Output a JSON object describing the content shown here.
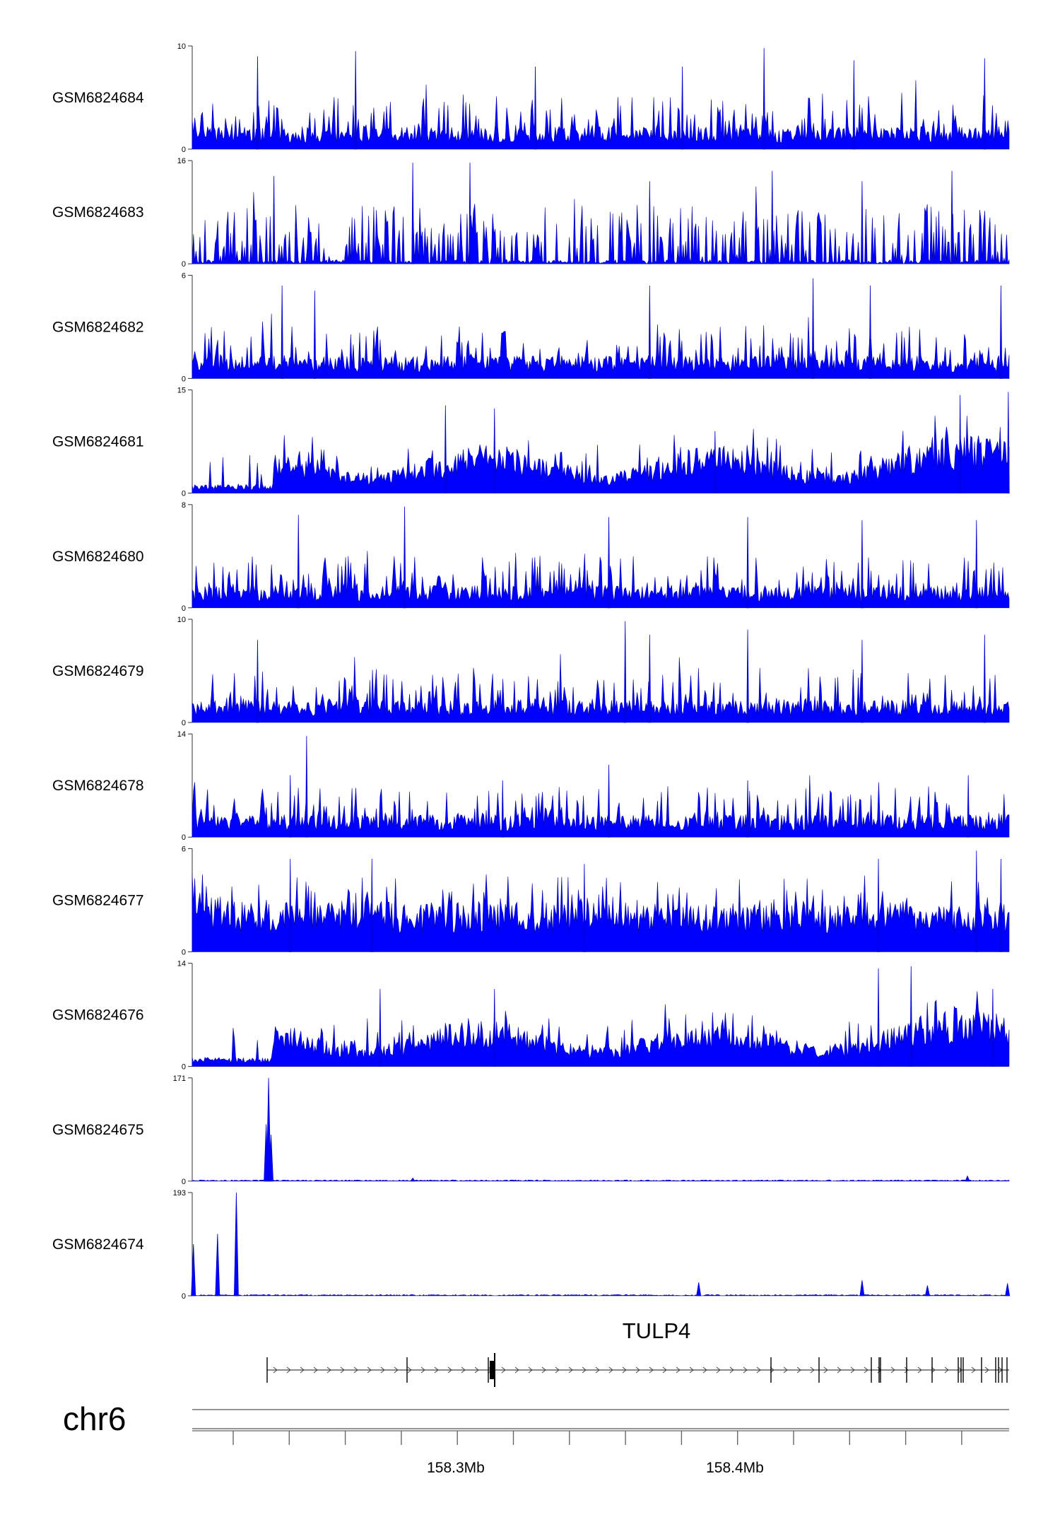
{
  "chart_data": {
    "type": "area",
    "chromosome": "chr6",
    "track_color": "#0000ff",
    "x_ticks": [
      "158.3Mb",
      "158.4Mb"
    ],
    "gene": {
      "name": "TULP4",
      "strand": "+"
    },
    "tracks": [
      {
        "name": "GSM6824684",
        "ymax": "10",
        "ymin": "0",
        "pattern": "noise",
        "peaks": [
          [
            0.08,
            0.9
          ],
          [
            0.2,
            0.95
          ],
          [
            0.42,
            0.8
          ],
          [
            0.6,
            0.8
          ],
          [
            0.7,
            0.98
          ],
          [
            0.81,
            0.86
          ],
          [
            0.97,
            0.88
          ]
        ]
      },
      {
        "name": "GSM6824683",
        "ymax": "16",
        "ymin": "0",
        "pattern": "sparse",
        "peaks": [
          [
            0.1,
            0.85
          ],
          [
            0.27,
            0.98
          ],
          [
            0.34,
            0.98
          ],
          [
            0.56,
            0.8
          ],
          [
            0.71,
            0.9
          ],
          [
            0.82,
            0.8
          ],
          [
            0.93,
            0.9
          ]
        ]
      },
      {
        "name": "GSM6824682",
        "ymax": "6",
        "ymin": "0",
        "pattern": "noise",
        "peaks": [
          [
            0.11,
            0.9
          ],
          [
            0.15,
            0.85
          ],
          [
            0.56,
            0.9
          ],
          [
            0.76,
            0.97
          ],
          [
            0.83,
            0.9
          ],
          [
            0.99,
            0.9
          ]
        ]
      },
      {
        "name": "GSM6824681",
        "ymax": "15",
        "ymin": "0",
        "pattern": "broad",
        "peaks": [
          [
            0.31,
            0.85
          ],
          [
            0.37,
            0.82
          ],
          [
            0.64,
            0.6
          ],
          [
            0.94,
            0.95
          ],
          [
            0.999,
            0.98
          ]
        ]
      },
      {
        "name": "GSM6824680",
        "ymax": "8",
        "ymin": "0",
        "pattern": "noise",
        "peaks": [
          [
            0.13,
            0.9
          ],
          [
            0.26,
            0.98
          ],
          [
            0.51,
            0.88
          ],
          [
            0.68,
            0.88
          ],
          [
            0.82,
            0.85
          ],
          [
            0.96,
            0.85
          ]
        ]
      },
      {
        "name": "GSM6824679",
        "ymax": "10",
        "ymin": "0",
        "pattern": "noise",
        "peaks": [
          [
            0.08,
            0.8
          ],
          [
            0.53,
            0.98
          ],
          [
            0.56,
            0.85
          ],
          [
            0.68,
            0.9
          ],
          [
            0.82,
            0.8
          ],
          [
            0.97,
            0.85
          ]
        ]
      },
      {
        "name": "GSM6824678",
        "ymax": "14",
        "ymin": "0",
        "pattern": "noise",
        "peaks": [
          [
            0.14,
            0.98
          ],
          [
            0.12,
            0.6
          ],
          [
            0.38,
            0.55
          ],
          [
            0.51,
            0.7
          ],
          [
            0.68,
            0.55
          ],
          [
            0.95,
            0.6
          ]
        ]
      },
      {
        "name": "GSM6824677",
        "ymax": "6",
        "ymin": "0",
        "pattern": "dense",
        "peaks": [
          [
            0.12,
            0.9
          ],
          [
            0.22,
            0.9
          ],
          [
            0.48,
            0.85
          ],
          [
            0.84,
            0.9
          ],
          [
            0.96,
            0.98
          ],
          [
            0.99,
            0.9
          ]
        ]
      },
      {
        "name": "GSM6824676",
        "ymax": "14",
        "ymin": "0",
        "pattern": "broad",
        "peaks": [
          [
            0.23,
            0.75
          ],
          [
            0.37,
            0.75
          ],
          [
            0.84,
            0.95
          ],
          [
            0.88,
            0.97
          ],
          [
            0.98,
            0.75
          ]
        ]
      },
      {
        "name": "GSM6824675",
        "ymax": "171",
        "ymin": "0",
        "pattern": "flat",
        "peaks": [
          [
            0.0935,
            1.0
          ],
          [
            0.0905,
            0.55
          ],
          [
            0.0965,
            0.45
          ],
          [
            0.27,
            0.03
          ],
          [
            0.949,
            0.05
          ]
        ]
      },
      {
        "name": "GSM6824674",
        "ymax": "193",
        "ymin": "0",
        "pattern": "flat",
        "peaks": [
          [
            0.0015,
            0.5
          ],
          [
            0.031,
            0.6
          ],
          [
            0.054,
            1.0
          ],
          [
            0.62,
            0.13
          ],
          [
            0.82,
            0.15
          ],
          [
            0.9,
            0.1
          ],
          [
            0.998,
            0.12
          ]
        ]
      }
    ]
  }
}
